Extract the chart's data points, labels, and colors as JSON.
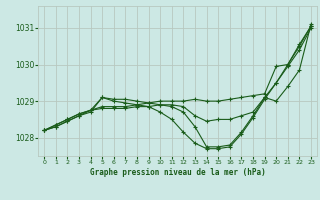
{
  "background_color": "#cce8e4",
  "grid_color": "#b8c8c0",
  "line_color": "#1a5c1a",
  "title": "Graphe pression niveau de la mer (hPa)",
  "xlim": [
    -0.5,
    23.5
  ],
  "ylim": [
    1027.5,
    1031.6
  ],
  "yticks": [
    1028,
    1029,
    1030,
    1031
  ],
  "xticks": [
    0,
    1,
    2,
    3,
    4,
    5,
    6,
    7,
    8,
    9,
    10,
    11,
    12,
    13,
    14,
    15,
    16,
    17,
    18,
    19,
    20,
    21,
    22,
    23
  ],
  "series": [
    [
      1028.2,
      1028.35,
      1028.5,
      1028.65,
      1028.75,
      1028.85,
      1028.85,
      1028.85,
      1028.9,
      1028.95,
      1029.0,
      1029.0,
      1029.0,
      1029.05,
      1029.0,
      1029.0,
      1029.05,
      1029.1,
      1029.15,
      1029.2,
      1029.95,
      1030.0,
      1030.55,
      1031.05
    ],
    [
      1028.2,
      1028.35,
      1028.5,
      1028.65,
      1028.75,
      1028.8,
      1028.8,
      1028.8,
      1028.85,
      1028.85,
      1028.9,
      1028.9,
      1028.85,
      1028.6,
      1028.45,
      1028.5,
      1028.5,
      1028.6,
      1028.7,
      1029.1,
      1029.5,
      1029.95,
      1030.4,
      1031.0
    ],
    [
      1028.2,
      1028.3,
      1028.45,
      1028.6,
      1028.7,
      1029.1,
      1029.05,
      1029.05,
      1029.0,
      1028.95,
      1028.9,
      1028.85,
      1028.7,
      1028.3,
      1027.75,
      1027.75,
      1027.8,
      1028.15,
      1028.6,
      1029.1,
      1029.0,
      1029.4,
      1029.85,
      1031.1
    ],
    [
      1028.2,
      1028.3,
      1028.45,
      1028.6,
      1028.75,
      1029.1,
      1029.0,
      1028.95,
      1028.9,
      1028.85,
      1028.7,
      1028.5,
      1028.15,
      1027.85,
      1027.7,
      1027.7,
      1027.75,
      1028.1,
      1028.55,
      1029.05,
      1029.5,
      1030.0,
      1030.5,
      1031.05
    ]
  ]
}
